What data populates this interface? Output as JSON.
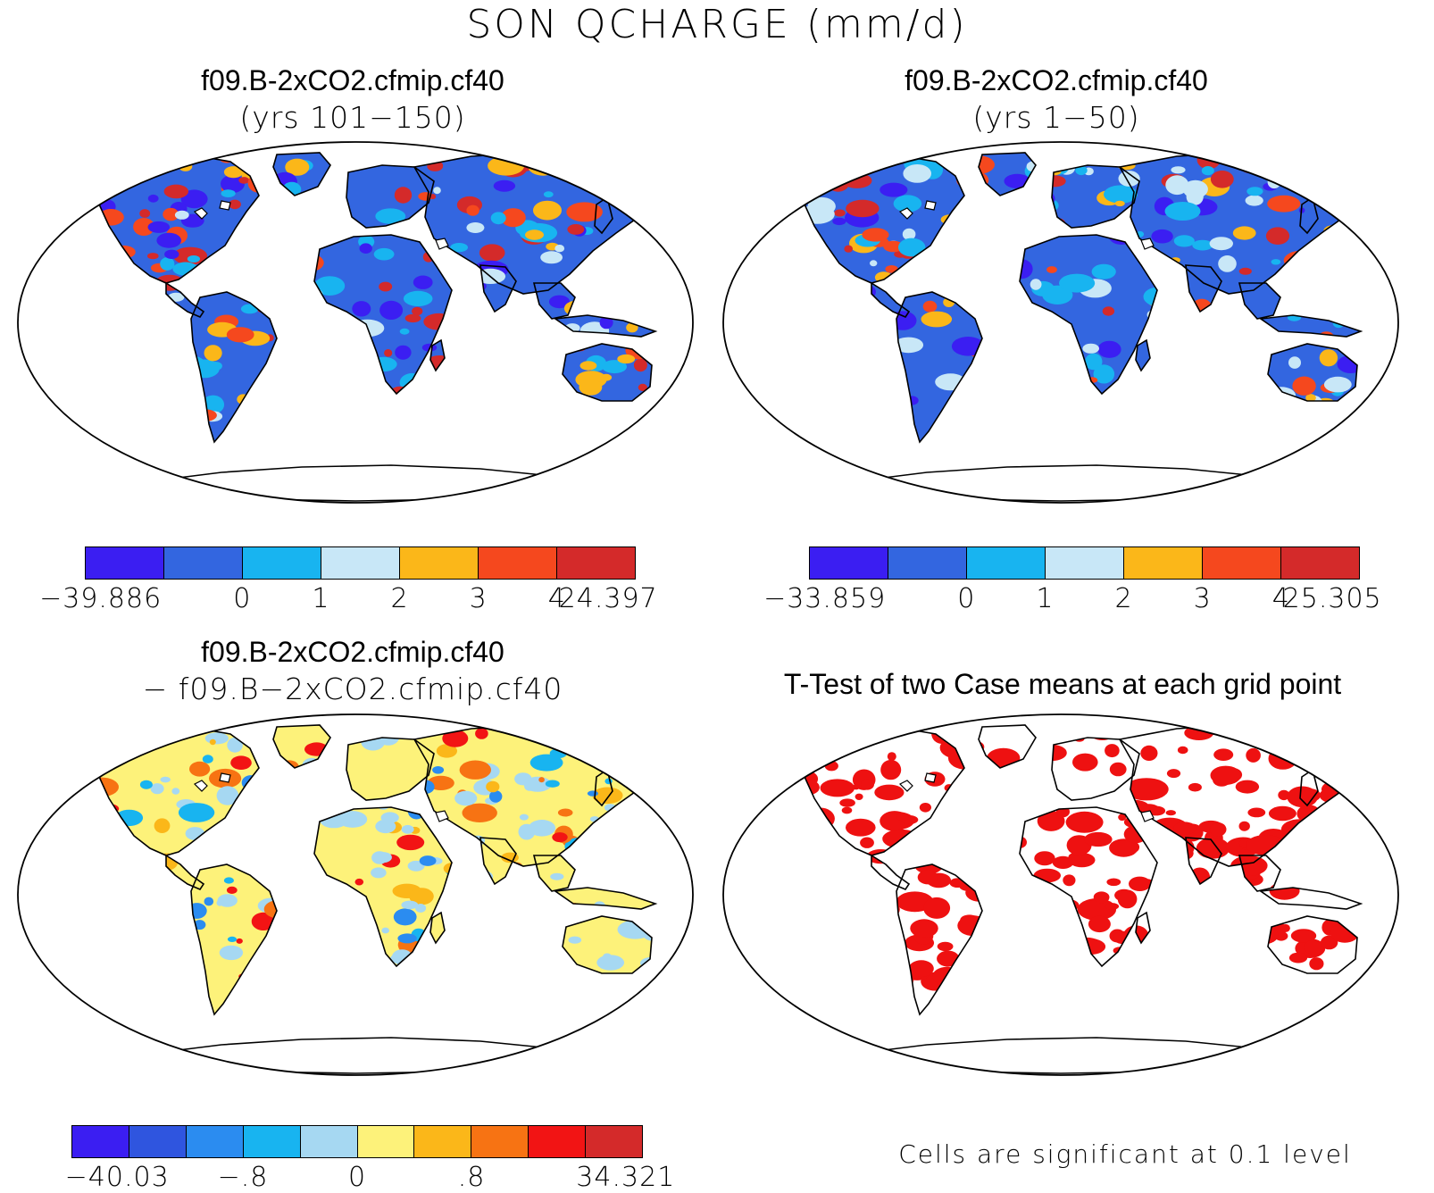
{
  "title": "SON QCHARGE (mm/d)",
  "panels": [
    {
      "id": "p1",
      "case": "f09.B-2xCO2.cfmip.cf40",
      "subtitle": "(yrs 101−150)",
      "colorbar": {
        "colors": [
          "#3b1ef2",
          "#3366e0",
          "#18b4f0",
          "#c8e7f7",
          "#fbb719",
          "#f5481e",
          "#d42a2a"
        ],
        "ticks": [
          "−39.886",
          "0",
          "1",
          "2",
          "3",
          "4",
          "24.397"
        ]
      }
    },
    {
      "id": "p2",
      "case": "f09.B-2xCO2.cfmip.cf40",
      "subtitle": "(yrs 1−50)",
      "colorbar": {
        "colors": [
          "#3b1ef2",
          "#3366e0",
          "#18b4f0",
          "#c8e7f7",
          "#fbb719",
          "#f5481e",
          "#d42a2a"
        ],
        "ticks": [
          "−33.859",
          "0",
          "1",
          "2",
          "3",
          "4",
          "25.305"
        ]
      }
    },
    {
      "id": "p3",
      "case": "f09.B-2xCO2.cfmip.cf40",
      "subtitle": "− f09.B−2xCO2.cfmip.cf40",
      "colorbar": {
        "colors": [
          "#3b1ef2",
          "#2f55df",
          "#2b8cf0",
          "#18b4f0",
          "#a6d8f2",
          "#fdf27a",
          "#fbb719",
          "#f77313",
          "#f21414",
          "#d42a2a"
        ],
        "ticks": [
          "−40.03",
          "−.8",
          "0",
          ".8",
          "34.321"
        ]
      }
    },
    {
      "id": "p4",
      "heading": "T-Test of two Case means at each grid point",
      "significance_color": "#ee1111",
      "footnote": "Cells are significant at 0.1 level"
    }
  ]
}
